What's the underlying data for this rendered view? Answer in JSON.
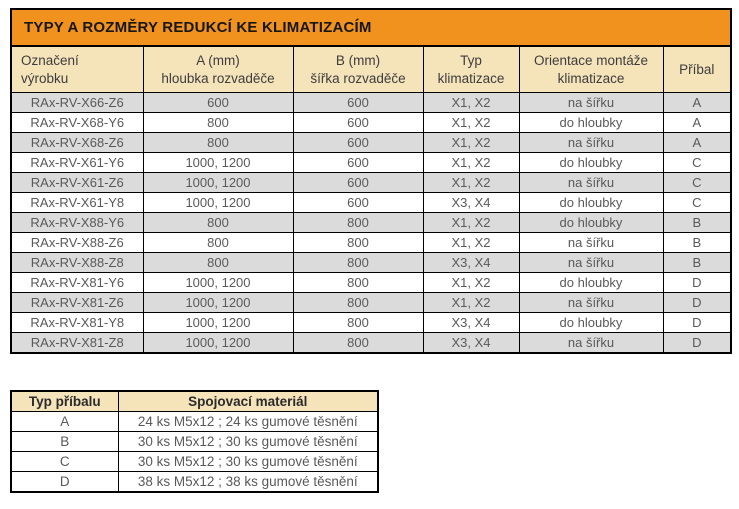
{
  "title": "TYPY A ROZMĚRY REDUKCÍ KE KLIMATIZACÍM",
  "colors": {
    "title_bg": "#F1921E",
    "header_bg": "#F5E3BA",
    "row_alt_bg": "#DBDBDB",
    "row_bg": "#FFFFFF",
    "border": "#000000",
    "cell_text": "#595959",
    "header_text": "#3D3D3D"
  },
  "main_table": {
    "headers": [
      "Označení\nvýrobku",
      "A (mm)\nhloubka rozvaděče",
      "B (mm)\nšířka rozvaděče",
      "Typ\nklimatizace",
      "Orientace montáže\nklimatizace",
      "Příbal"
    ],
    "rows": [
      [
        "RAx-RV-X66-Z6",
        "600",
        "600",
        "X1, X2",
        "na šířku",
        "A"
      ],
      [
        "RAx-RV-X68-Y6",
        "800",
        "600",
        "X1, X2",
        "do hloubky",
        "A"
      ],
      [
        "RAx-RV-X68-Z6",
        "800",
        "600",
        "X1, X2",
        "na šířku",
        "A"
      ],
      [
        "RAx-RV-X61-Y6",
        "1000, 1200",
        "600",
        "X1, X2",
        "do hloubky",
        "C"
      ],
      [
        "RAx-RV-X61-Z6",
        "1000, 1200",
        "600",
        "X1, X2",
        "na šířku",
        "C"
      ],
      [
        "RAx-RV-X61-Y8",
        "1000, 1200",
        "600",
        "X3, X4",
        "do hloubky",
        "C"
      ],
      [
        "RAx-RV-X88-Y6",
        "800",
        "800",
        "X1, X2",
        "do hloubky",
        "B"
      ],
      [
        "RAx-RV-X88-Z6",
        "800",
        "800",
        "X1, X2",
        "na šířku",
        "B"
      ],
      [
        "RAx-RV-X88-Z8",
        "800",
        "800",
        "X3, X4",
        "na šířku",
        "B"
      ],
      [
        "RAx-RV-X81-Y6",
        "1000, 1200",
        "800",
        "X1, X2",
        "do hloubky",
        "D"
      ],
      [
        "RAx-RV-X81-Z6",
        "1000, 1200",
        "800",
        "X1, X2",
        "na šířku",
        "D"
      ],
      [
        "RAx-RV-X81-Y8",
        "1000, 1200",
        "800",
        "X3, X4",
        "do hloubky",
        "D"
      ],
      [
        "RAx-RV-X81-Z8",
        "1000, 1200",
        "800",
        "X3, X4",
        "na šířku",
        "D"
      ]
    ]
  },
  "accessory_table": {
    "headers": [
      "Typ příbalu",
      "Spojovací materiál"
    ],
    "rows": [
      [
        "A",
        "24 ks M5x12 ; 24 ks gumové těsnění"
      ],
      [
        "B",
        "30 ks M5x12 ; 30 ks gumové těsnění"
      ],
      [
        "C",
        "30 ks M5x12 ; 30 ks gumové těsnění"
      ],
      [
        "D",
        "38 ks M5x12 ; 38 ks gumové těsnění"
      ]
    ]
  }
}
